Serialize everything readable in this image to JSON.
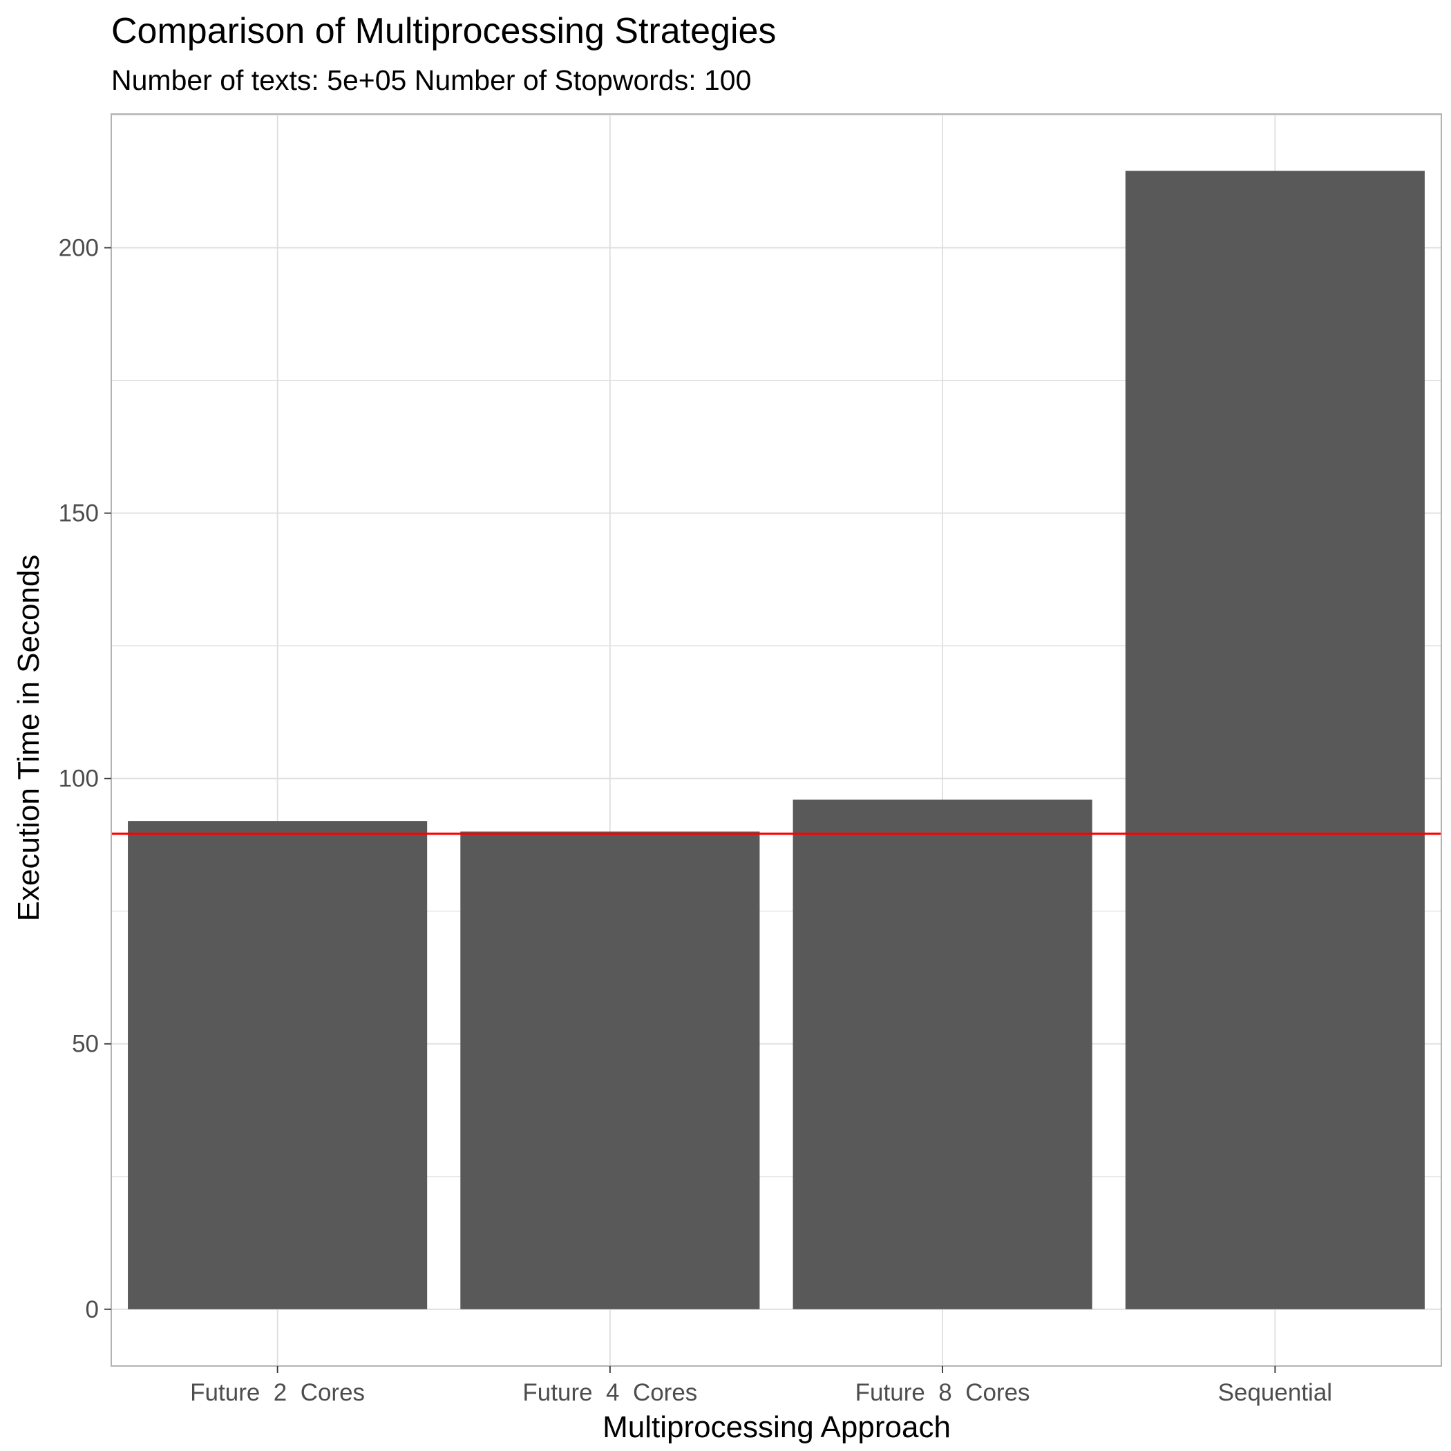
{
  "chart_data": {
    "type": "bar",
    "title": "Comparison of Multiprocessing Strategies",
    "subtitle": "Number of texts: 5e+05 Number of Stopwords:  100",
    "xlabel": "Multiprocessing Approach",
    "ylabel": "Execution Time in Seconds",
    "categories": [
      "Future  2  Cores",
      "Future  4  Cores",
      "Future  8  Cores",
      "Sequential"
    ],
    "values": [
      92,
      90,
      96,
      214.5
    ],
    "ylim": [
      -10.7,
      225.2
    ],
    "yticks": [
      0,
      50,
      100,
      150,
      200
    ],
    "reference_line": {
      "value": 89.6,
      "color": "#ff0000"
    },
    "bar_color": "#595959",
    "grid": true,
    "grid_color": "#dedede",
    "panel_border_color": "#b3b3b3"
  }
}
